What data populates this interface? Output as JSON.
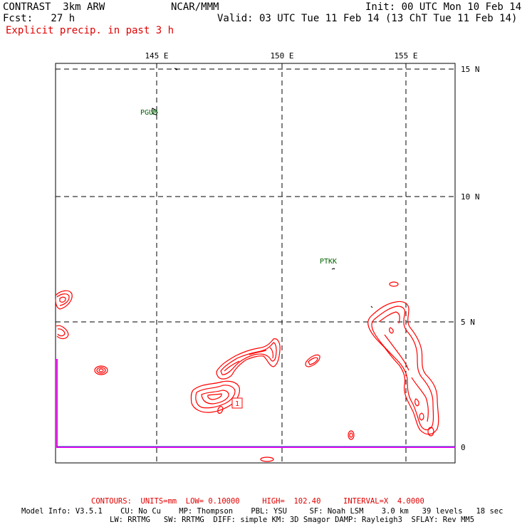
{
  "header": {
    "model_title": "CONTRAST  3km ARW",
    "org": "NCAR/MMM",
    "init": "Init: 00 UTC Mon 10 Feb 14",
    "fcst": "Fcst:   27 h",
    "valid": "Valid: 03 UTC Tue 11 Feb 14 (13 ChT Tue 11 Feb 14)",
    "field": "Explicit precip. in past 3 h"
  },
  "map": {
    "lon_labels": [
      "145 E",
      "150 E",
      "155 E"
    ],
    "lat_labels": [
      "15 N",
      "10 N",
      "5 N",
      "0"
    ],
    "stations": [
      "PGUM",
      "PTKK"
    ],
    "max_marker": "1",
    "colors": {
      "contour": "#ff0000",
      "station": "#006400",
      "border": "#ff00ff",
      "grid": "#000000"
    }
  },
  "footer": {
    "contours": "CONTOURS:  UNITS=mm  LOW= 0.10000     HIGH=  102.40     INTERVAL=X  4.0000",
    "model_info": "Model Info: V3.5.1    CU: No Cu    MP: Thompson    PBL: YSU     SF: Noah LSM    3.0 km   39 levels   18 sec",
    "physics": "LW: RRTMG   SW: RRTMG  DIFF: simple KM: 3D Smagor DAMP: Rayleigh3  SFLAY: Rev MM5"
  }
}
